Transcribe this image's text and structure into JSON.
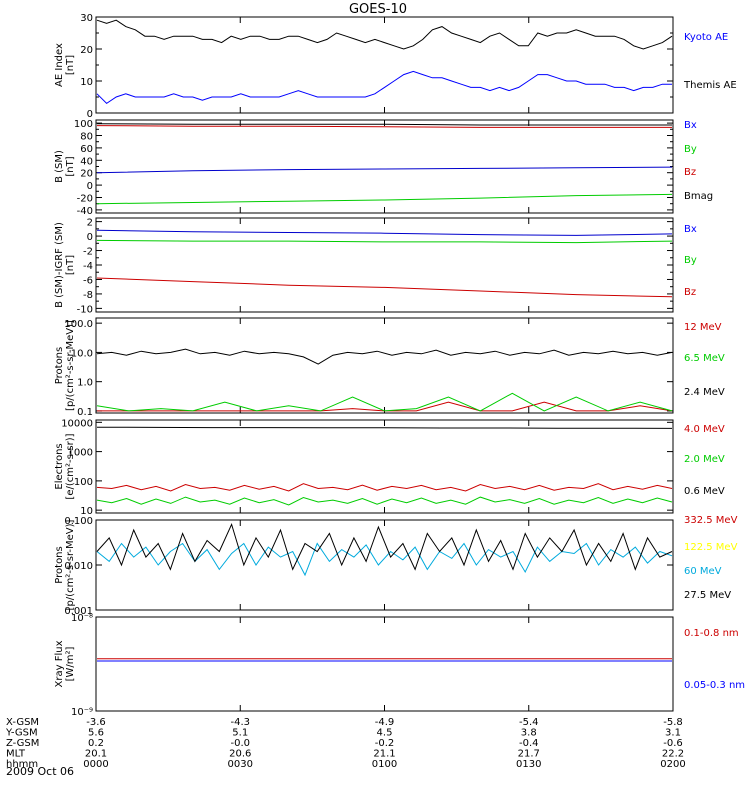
{
  "title": "GOES-10",
  "date_label": "2009 Oct 06",
  "ephemeris": {
    "rows": [
      {
        "label": "X-GSM",
        "values": [
          "-3.6",
          "-4.3",
          "-4.9",
          "-5.4",
          "-5.8"
        ]
      },
      {
        "label": "Y-GSM",
        "values": [
          "5.6",
          "5.1",
          "4.5",
          "3.8",
          "3.1"
        ]
      },
      {
        "label": "Z-GSM",
        "values": [
          "0.2",
          "-0.0",
          "-0.2",
          "-0.4",
          "-0.6"
        ]
      },
      {
        "label": "MLT",
        "values": [
          "20.1",
          "20.6",
          "21.1",
          "21.7",
          "22.2"
        ]
      },
      {
        "label": "hhmm",
        "values": [
          "0000",
          "0030",
          "0100",
          "0130",
          "0200"
        ]
      }
    ]
  },
  "chart_data": [
    {
      "type": "line",
      "ylabel_lines": [
        "AE Index",
        "[nT]"
      ],
      "ylim": [
        0,
        30
      ],
      "log": false,
      "yticks": [
        0,
        10,
        20,
        30
      ],
      "yticklabels": [
        "0",
        "10",
        "20",
        "30"
      ],
      "minor": [
        5,
        15,
        25
      ],
      "series": [
        {
          "name": "Kyoto AE",
          "color": "#0000ff",
          "label_color": "#0000ff",
          "kind": "line",
          "values": [
            6,
            3,
            5,
            6,
            5,
            5,
            5,
            5,
            6,
            5,
            5,
            4,
            5,
            5,
            5,
            6,
            5,
            5,
            5,
            5,
            6,
            7,
            6,
            5,
            5,
            5,
            5,
            5,
            5,
            6,
            8,
            10,
            12,
            13,
            12,
            11,
            11,
            10,
            9,
            8,
            8,
            7,
            8,
            7,
            8,
            10,
            12,
            12,
            11,
            10,
            10,
            9,
            9,
            9,
            8,
            8,
            7,
            8,
            8,
            9,
            9
          ]
        },
        {
          "name": "Themis AE",
          "color": "#000000",
          "label_color": "#000000",
          "kind": "line",
          "values": [
            29,
            28,
            29,
            27,
            26,
            24,
            24,
            23,
            24,
            24,
            24,
            23,
            23,
            22,
            24,
            23,
            24,
            24,
            23,
            23,
            24,
            24,
            23,
            22,
            23,
            25,
            24,
            23,
            22,
            23,
            22,
            21,
            20,
            21,
            23,
            26,
            27,
            25,
            24,
            23,
            22,
            24,
            25,
            23,
            21,
            21,
            25,
            24,
            25,
            25,
            26,
            25,
            24,
            24,
            24,
            23,
            21,
            20,
            21,
            22,
            24
          ]
        }
      ]
    },
    {
      "type": "line",
      "ylabel_lines": [
        "B (SM)",
        "[nT]"
      ],
      "ylim": [
        -45,
        105
      ],
      "log": false,
      "yticks": [
        -40,
        -20,
        0,
        20,
        40,
        60,
        80,
        100
      ],
      "yticklabels": [
        "-40",
        "-20",
        "0",
        "20",
        "40",
        "60",
        "80",
        "100"
      ],
      "minor": [
        -30,
        -10,
        10,
        30,
        50,
        70,
        90
      ],
      "series": [
        {
          "name": "Bx",
          "color": "#0000cc",
          "label_color": "#0000ff",
          "kind": "line",
          "values": [
            20,
            23,
            25,
            26,
            27,
            28,
            29
          ]
        },
        {
          "name": "By",
          "color": "#00cc00",
          "label_color": "#00cc00",
          "kind": "line",
          "values": [
            -30,
            -28,
            -26,
            -24,
            -21,
            -17,
            -15
          ]
        },
        {
          "name": "Bz",
          "color": "#cc0000",
          "label_color": "#cc0000",
          "kind": "line",
          "values": [
            96,
            95,
            95,
            94,
            93,
            93,
            93
          ]
        },
        {
          "name": "Bmag",
          "color": "#000000",
          "label_color": "#000000",
          "kind": "line",
          "values": [
            99,
            98,
            98,
            98,
            97,
            97,
            97
          ]
        }
      ]
    },
    {
      "type": "line",
      "ylabel_lines": [
        "B (SM)-IGRF (SM)",
        "[nT]"
      ],
      "ylim": [
        -10.5,
        2.5
      ],
      "log": false,
      "yticks": [
        -10,
        -8,
        -6,
        -4,
        -2,
        0,
        2
      ],
      "yticklabels": [
        "-10",
        "-8",
        "-6",
        "-4",
        "-2",
        "0",
        "2"
      ],
      "minor": [
        -9,
        -7,
        -5,
        -3,
        -1,
        1
      ],
      "series": [
        {
          "name": "Bx",
          "color": "#0000cc",
          "label_color": "#0000ff",
          "kind": "line",
          "values": [
            0.8,
            0.6,
            0.5,
            0.4,
            0.2,
            0.1,
            0.3
          ]
        },
        {
          "name": "By",
          "color": "#00cc00",
          "label_color": "#00cc00",
          "kind": "line",
          "values": [
            -0.6,
            -0.7,
            -0.7,
            -0.8,
            -0.8,
            -0.9,
            -0.7
          ]
        },
        {
          "name": "Bz",
          "color": "#cc0000",
          "label_color": "#cc0000",
          "kind": "line",
          "values": [
            -5.8,
            -6.3,
            -6.8,
            -7.1,
            -7.6,
            -8.1,
            -8.4
          ]
        }
      ]
    },
    {
      "type": "line",
      "ylabel_lines": [
        "Protons",
        "[p/(cm²-s-sr-MeV)]"
      ],
      "ylim": [
        0.085,
        150
      ],
      "log": true,
      "yticks": [
        0.1,
        1,
        10,
        100
      ],
      "yticklabels": [
        "0.1",
        "1.0",
        "10.0",
        "100.0"
      ],
      "series": [
        {
          "name": "12 MeV",
          "color": "#cc0000",
          "label_color": "#cc0000",
          "kind": "line",
          "values": [
            0.1,
            0.1,
            0.1,
            0.1,
            0.1,
            0.1,
            0.1,
            0.1,
            0.12,
            0.1,
            0.1,
            0.2,
            0.1,
            0.1,
            0.2,
            0.1,
            0.1,
            0.15,
            0.1
          ]
        },
        {
          "name": "6.5 MeV",
          "color": "#00cc00",
          "label_color": "#00cc00",
          "kind": "line",
          "values": [
            0.15,
            0.1,
            0.12,
            0.1,
            0.2,
            0.1,
            0.15,
            0.1,
            0.3,
            0.1,
            0.12,
            0.3,
            0.1,
            0.4,
            0.1,
            0.3,
            0.1,
            0.2,
            0.1
          ]
        },
        {
          "name": "2.4 MeV",
          "color": "#000000",
          "label_color": "#000000",
          "kind": "line",
          "values": [
            9,
            10,
            8,
            11,
            9,
            10,
            13,
            9,
            10,
            8,
            11,
            9,
            10,
            9,
            7,
            4,
            8,
            10,
            9,
            11,
            8,
            10,
            9,
            12,
            8,
            10,
            9,
            11,
            8,
            10,
            9,
            12,
            8,
            10,
            9,
            11,
            9,
            10,
            8,
            10
          ]
        }
      ]
    },
    {
      "type": "line",
      "ylabel_lines": [
        "Electrons",
        "[e/(cm²-s-sr)]"
      ],
      "ylim": [
        8,
        12000
      ],
      "log": true,
      "yticks": [
        10,
        100,
        1000,
        10000
      ],
      "yticklabels": [
        "10",
        "100",
        "1000",
        "10000"
      ],
      "series": [
        {
          "name": "4.0 MeV",
          "color": "#cc0000",
          "label_color": "#cc0000",
          "kind": "line",
          "values": [
            60,
            55,
            70,
            50,
            65,
            45,
            75,
            55,
            60,
            48,
            70,
            52,
            65,
            45,
            80,
            55,
            60,
            50,
            72,
            48,
            65,
            55,
            70,
            50,
            60,
            45,
            75,
            55,
            65,
            50,
            70,
            48,
            60,
            55,
            80,
            50,
            65,
            52,
            70,
            55
          ]
        },
        {
          "name": "2.0 MeV",
          "color": "#00cc00",
          "label_color": "#00cc00",
          "kind": "line",
          "values": [
            22,
            18,
            25,
            16,
            24,
            17,
            28,
            19,
            22,
            16,
            26,
            18,
            23,
            15,
            27,
            19,
            22,
            17,
            25,
            16,
            24,
            18,
            26,
            17,
            22,
            16,
            28,
            19,
            23,
            17,
            25,
            16,
            22,
            18,
            27,
            17,
            24,
            18,
            26,
            19
          ]
        },
        {
          "name": "0.6 MeV",
          "color": "#000000",
          "label_color": "#000000",
          "kind": "line",
          "values": [
            6800,
            6700,
            6600,
            6600,
            6500,
            6500,
            6400,
            6400,
            6300,
            6300,
            6200
          ]
        }
      ]
    },
    {
      "type": "line",
      "ylabel_lines": [
        "Protons",
        "[p/(cm²-s-sr-MeV)]"
      ],
      "ylim": [
        0.001,
        0.1
      ],
      "log": true,
      "yticks": [
        0.001,
        0.01,
        0.1
      ],
      "yticklabels": [
        "0.001",
        "0.010",
        "0.100"
      ],
      "series": [
        {
          "name": "332.5 MeV",
          "color": "#cc0000",
          "label_color": "#cc0000",
          "kind": "line",
          "values": []
        },
        {
          "name": "122.5 MeV",
          "color": "#ffff00",
          "label_color": "#ffff00",
          "kind": "line",
          "values": []
        },
        {
          "name": "60 MeV",
          "color": "#00aadd",
          "label_color": "#00aadd",
          "kind": "line",
          "values": [
            0.02,
            0.012,
            0.03,
            0.015,
            0.025,
            0.01,
            0.02,
            0.03,
            0.012,
            0.022,
            0.008,
            0.018,
            0.03,
            0.01,
            0.025,
            0.015,
            0.02,
            0.006,
            0.03,
            0.012,
            0.022,
            0.015,
            0.028,
            0.01,
            0.02,
            0.013,
            0.025,
            0.008,
            0.02,
            0.014,
            0.03,
            0.01,
            0.022,
            0.015,
            0.02,
            0.007,
            0.025,
            0.012,
            0.02,
            0.018,
            0.03,
            0.01,
            0.022,
            0.015,
            0.025,
            0.011,
            0.02,
            0.016
          ]
        },
        {
          "name": "27.5 MeV",
          "color": "#000000",
          "label_color": "#000000",
          "kind": "line",
          "values": [
            0.02,
            0.04,
            0.01,
            0.06,
            0.015,
            0.03,
            0.008,
            0.05,
            0.012,
            0.035,
            0.02,
            0.08,
            0.01,
            0.04,
            0.015,
            0.06,
            0.008,
            0.03,
            0.02,
            0.05,
            0.01,
            0.04,
            0.012,
            0.07,
            0.015,
            0.03,
            0.008,
            0.05,
            0.02,
            0.04,
            0.01,
            0.06,
            0.012,
            0.035,
            0.008,
            0.05,
            0.015,
            0.04,
            0.02,
            0.06,
            0.01,
            0.03,
            0.012,
            0.05,
            0.008,
            0.04,
            0.015,
            0.02
          ]
        }
      ]
    },
    {
      "type": "line",
      "ylabel_lines": [
        "Xray Flux",
        "[W/m²]"
      ],
      "ylim": [
        1e-09,
        1e-08
      ],
      "log": true,
      "yticks": [
        1e-09,
        1e-08
      ],
      "yticklabels": [
        "10⁻⁹",
        "10⁻⁸"
      ],
      "series": [
        {
          "name": "0.1-0.8 nm",
          "color": "#cc0000",
          "label_color": "#cc0000",
          "kind": "line",
          "values": [
            3.6e-09,
            3.6e-09
          ]
        },
        {
          "name": "0.05-0.3 nm",
          "color": "#0000ff",
          "label_color": "#0000ff",
          "kind": "line",
          "values": [
            3.4e-09,
            3.4e-09
          ]
        }
      ]
    }
  ]
}
